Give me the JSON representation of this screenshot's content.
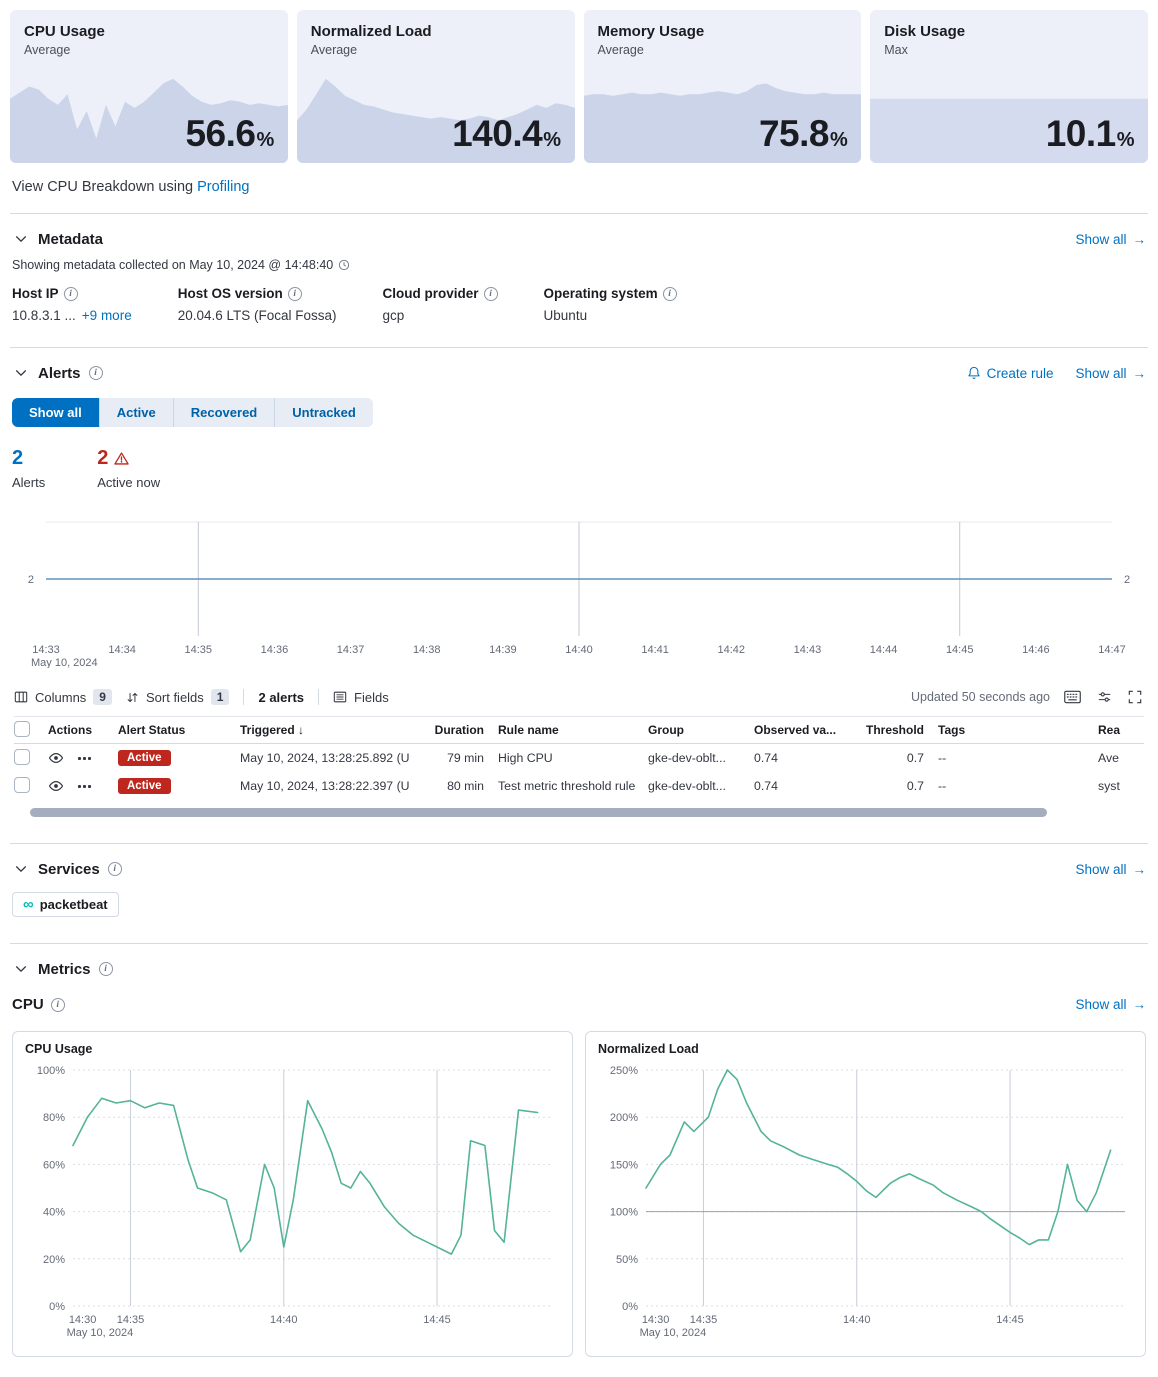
{
  "colors": {
    "accent": "#0071c2",
    "danger": "#bd271e",
    "chart_green": "#54b399",
    "chart_blue": "#6092c0",
    "spark_fill": "#ccd4ea"
  },
  "kpi_cards": [
    {
      "title": "CPU Usage",
      "subtitle": "Average",
      "value": "56.6",
      "unit": "%"
    },
    {
      "title": "Normalized Load",
      "subtitle": "Average",
      "value": "140.4",
      "unit": "%"
    },
    {
      "title": "Memory Usage",
      "subtitle": "Average",
      "value": "75.8",
      "unit": "%"
    },
    {
      "title": "Disk Usage",
      "subtitle": "Max",
      "value": "10.1",
      "unit": "%"
    }
  ],
  "profiling_note": {
    "text": "View CPU Breakdown using",
    "link": "Profiling"
  },
  "metadata": {
    "title": "Metadata",
    "show_all": "Show all",
    "collected_text": "Showing metadata collected on May 10, 2024 @ 14:48:40",
    "fields": [
      {
        "label": "Host IP",
        "value": "10.8.3.1 ...",
        "extra": "+9 more"
      },
      {
        "label": "Host OS version",
        "value": "20.04.6 LTS (Focal Fossa)",
        "extra": ""
      },
      {
        "label": "Cloud provider",
        "value": "gcp",
        "extra": ""
      },
      {
        "label": "Operating system",
        "value": "Ubuntu",
        "extra": ""
      }
    ]
  },
  "alerts": {
    "title": "Alerts",
    "create_rule": "Create rule",
    "show_all": "Show all",
    "tabs": [
      {
        "label": "Show all"
      },
      {
        "label": "Active"
      },
      {
        "label": "Recovered"
      },
      {
        "label": "Untracked"
      }
    ],
    "stats": [
      {
        "value": "2",
        "label": "Alerts"
      },
      {
        "value": "2",
        "label": "Active now"
      }
    ],
    "toolbar": {
      "columns_label": "Columns",
      "columns_count": "9",
      "sort_label": "Sort fields",
      "sort_count": "1",
      "alert_count": "2 alerts",
      "fields_label": "Fields",
      "updated": "Updated 50 seconds ago"
    },
    "table": {
      "headers": {
        "actions": "Actions",
        "status": "Alert Status",
        "triggered": "Triggered",
        "duration": "Duration",
        "rule": "Rule name",
        "group": "Group",
        "observed": "Observed va...",
        "threshold": "Threshold",
        "tags": "Tags",
        "reason": "Rea"
      },
      "rows": [
        {
          "status": "Active",
          "triggered": "May 10, 2024, 13:28:25.892 (U",
          "duration": "79 min",
          "rule": "High CPU",
          "group": "gke-dev-oblt...",
          "observed": "0.74",
          "threshold": "0.7",
          "tags": "--",
          "reason": "Ave"
        },
        {
          "status": "Active",
          "triggered": "May 10, 2024, 13:28:22.397 (U",
          "duration": "80 min",
          "rule": "Test metric threshold rule",
          "group": "gke-dev-oblt...",
          "observed": "0.74",
          "threshold": "0.7",
          "tags": "--",
          "reason": "syst"
        }
      ]
    }
  },
  "services": {
    "title": "Services",
    "show_all": "Show all",
    "items": [
      {
        "name": "packetbeat"
      }
    ]
  },
  "metrics": {
    "title": "Metrics",
    "group": "CPU",
    "show_all": "Show all",
    "panels": [
      {
        "title": "CPU Usage"
      },
      {
        "title": "Normalized Load"
      }
    ]
  },
  "chart_data": {
    "sparklines": {
      "cpu": {
        "type": "area",
        "title": "CPU Usage sparkline",
        "fill": "#ccd4ea",
        "values": [
          0.42,
          0.46,
          0.5,
          0.48,
          0.42,
          0.38,
          0.45,
          0.22,
          0.34,
          0.16,
          0.38,
          0.24,
          0.4,
          0.36,
          0.4,
          0.46,
          0.52,
          0.55,
          0.5,
          0.44,
          0.4,
          0.38,
          0.39,
          0.41,
          0.4,
          0.38,
          0.39,
          0.38,
          0.37,
          0.38
        ]
      },
      "load": {
        "type": "area",
        "title": "Normalized Load sparkline",
        "fill": "#ccd4ea",
        "values": [
          0.28,
          0.35,
          0.45,
          0.55,
          0.5,
          0.44,
          0.41,
          0.38,
          0.37,
          0.35,
          0.33,
          0.32,
          0.31,
          0.3,
          0.29,
          0.3,
          0.29,
          0.28,
          0.29,
          0.31,
          0.3,
          0.28,
          0.3,
          0.32,
          0.35,
          0.38,
          0.36,
          0.39,
          0.38,
          0.36
        ]
      },
      "memory": {
        "type": "area",
        "title": "Memory Usage sparkline",
        "fill": "#ccd4ea",
        "values": [
          0.44,
          0.45,
          0.45,
          0.44,
          0.45,
          0.46,
          0.45,
          0.45,
          0.46,
          0.45,
          0.44,
          0.45,
          0.45,
          0.46,
          0.47,
          0.46,
          0.45,
          0.47,
          0.51,
          0.52,
          0.49,
          0.47,
          0.46,
          0.45,
          0.45,
          0.46,
          0.45,
          0.45,
          0.45,
          0.45
        ]
      },
      "disk": {
        "type": "area",
        "title": "Disk Usage sparkline",
        "fill": "#d5dbee",
        "values": [
          0.42,
          0.42,
          0.42,
          0.42,
          0.42,
          0.42,
          0.42,
          0.42,
          0.42,
          0.42,
          0.42,
          0.42,
          0.42,
          0.42,
          0.42,
          0.42,
          0.42,
          0.42,
          0.42,
          0.42,
          0.42,
          0.42,
          0.42,
          0.42,
          0.42,
          0.42,
          0.42,
          0.42,
          0.42,
          0.42
        ]
      }
    },
    "alert_timeline": {
      "type": "timeline",
      "title": "Alert count over time",
      "value": 2,
      "ymax": 4,
      "y_label": "2",
      "line_color": "#6092c0",
      "xlabels": [
        "14:33",
        "14:34",
        "14:35",
        "14:36",
        "14:37",
        "14:38",
        "14:39",
        "14:40",
        "14:41",
        "14:42",
        "14:43",
        "14:44",
        "14:45",
        "14:46",
        "14:47"
      ],
      "grid_labels": [
        "14:35",
        "14:40",
        "14:45"
      ],
      "x_sub": "May 10, 2024"
    },
    "cpu_usage": {
      "type": "line",
      "title": "CPU Usage",
      "color": "#54b399",
      "ylim": [
        0,
        100
      ],
      "yticks": [
        {
          "v": 0,
          "label": "0%"
        },
        {
          "v": 20,
          "label": "20%"
        },
        {
          "v": 40,
          "label": "40%"
        },
        {
          "v": 60,
          "label": "60%"
        },
        {
          "v": 80,
          "label": "80%"
        },
        {
          "v": 100,
          "label": "100%"
        }
      ],
      "xticks": [
        {
          "x": 0.02,
          "label": "14:30"
        },
        {
          "x": 0.12,
          "label": "14:35",
          "grid": true
        },
        {
          "x": 0.44,
          "label": "14:40",
          "grid": true
        },
        {
          "x": 0.76,
          "label": "14:45",
          "grid": true
        }
      ],
      "x_sub": "May 10, 2024",
      "points": [
        [
          0,
          68
        ],
        [
          0.03,
          80
        ],
        [
          0.06,
          88
        ],
        [
          0.09,
          86
        ],
        [
          0.12,
          87
        ],
        [
          0.15,
          84
        ],
        [
          0.18,
          86
        ],
        [
          0.21,
          85
        ],
        [
          0.24,
          62
        ],
        [
          0.26,
          50
        ],
        [
          0.29,
          48
        ],
        [
          0.32,
          45
        ],
        [
          0.35,
          23
        ],
        [
          0.37,
          28
        ],
        [
          0.4,
          60
        ],
        [
          0.42,
          50
        ],
        [
          0.44,
          25
        ],
        [
          0.46,
          45
        ],
        [
          0.49,
          87
        ],
        [
          0.52,
          75
        ],
        [
          0.54,
          65
        ],
        [
          0.56,
          52
        ],
        [
          0.58,
          50
        ],
        [
          0.6,
          57
        ],
        [
          0.62,
          52
        ],
        [
          0.65,
          42
        ],
        [
          0.68,
          35
        ],
        [
          0.71,
          30
        ],
        [
          0.74,
          27
        ],
        [
          0.77,
          24
        ],
        [
          0.79,
          22
        ],
        [
          0.81,
          30
        ],
        [
          0.83,
          70
        ],
        [
          0.86,
          68
        ],
        [
          0.88,
          32
        ],
        [
          0.9,
          27
        ],
        [
          0.93,
          83
        ],
        [
          0.97,
          82
        ]
      ]
    },
    "normalized_load": {
      "type": "line",
      "title": "Normalized Load",
      "color": "#54b399",
      "ylim": [
        0,
        250
      ],
      "ref_y": 100,
      "yticks": [
        {
          "v": 0,
          "label": "0%"
        },
        {
          "v": 50,
          "label": "50%"
        },
        {
          "v": 100,
          "label": "100%"
        },
        {
          "v": 150,
          "label": "150%"
        },
        {
          "v": 200,
          "label": "200%"
        },
        {
          "v": 250,
          "label": "250%"
        }
      ],
      "xticks": [
        {
          "x": 0.02,
          "label": "14:30"
        },
        {
          "x": 0.12,
          "label": "14:35",
          "grid": true
        },
        {
          "x": 0.44,
          "label": "14:40",
          "grid": true
        },
        {
          "x": 0.76,
          "label": "14:45",
          "grid": true
        }
      ],
      "x_sub": "May 10, 2024",
      "points": [
        [
          0,
          125
        ],
        [
          0.03,
          150
        ],
        [
          0.05,
          160
        ],
        [
          0.08,
          195
        ],
        [
          0.1,
          185
        ],
        [
          0.13,
          200
        ],
        [
          0.15,
          230
        ],
        [
          0.17,
          250
        ],
        [
          0.19,
          240
        ],
        [
          0.21,
          215
        ],
        [
          0.24,
          185
        ],
        [
          0.26,
          175
        ],
        [
          0.29,
          168
        ],
        [
          0.32,
          160
        ],
        [
          0.35,
          155
        ],
        [
          0.38,
          150
        ],
        [
          0.4,
          147
        ],
        [
          0.42,
          140
        ],
        [
          0.44,
          132
        ],
        [
          0.46,
          122
        ],
        [
          0.48,
          115
        ],
        [
          0.51,
          130
        ],
        [
          0.53,
          136
        ],
        [
          0.55,
          140
        ],
        [
          0.57,
          135
        ],
        [
          0.6,
          128
        ],
        [
          0.62,
          120
        ],
        [
          0.65,
          112
        ],
        [
          0.68,
          105
        ],
        [
          0.7,
          100
        ],
        [
          0.72,
          92
        ],
        [
          0.74,
          85
        ],
        [
          0.76,
          78
        ],
        [
          0.78,
          72
        ],
        [
          0.8,
          65
        ],
        [
          0.82,
          70
        ],
        [
          0.84,
          70
        ],
        [
          0.86,
          100
        ],
        [
          0.88,
          150
        ],
        [
          0.9,
          112
        ],
        [
          0.92,
          100
        ],
        [
          0.94,
          120
        ],
        [
          0.97,
          165
        ]
      ]
    }
  }
}
